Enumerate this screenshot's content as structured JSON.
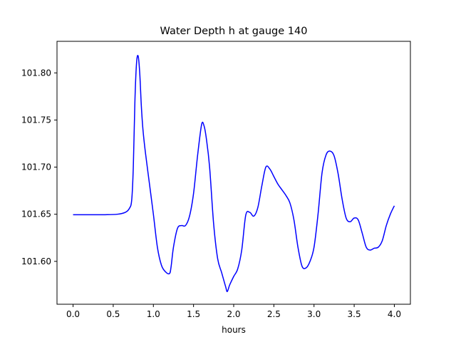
{
  "chart_data": {
    "type": "line",
    "title": "Water Depth h at gauge 140",
    "xlabel": "hours",
    "ylabel": "",
    "xlim": [
      -0.2,
      4.2
    ],
    "ylim": [
      101.5545,
      101.8335
    ],
    "x_ticks": [
      0.0,
      0.5,
      1.0,
      1.5,
      2.0,
      2.5,
      3.0,
      3.5,
      4.0
    ],
    "x_tick_labels": [
      "0.0",
      "0.5",
      "1.0",
      "1.5",
      "2.0",
      "2.5",
      "3.0",
      "3.5",
      "4.0"
    ],
    "y_ticks": [
      101.6,
      101.65,
      101.7,
      101.75,
      101.8
    ],
    "y_tick_labels": [
      "101.60",
      "101.65",
      "101.70",
      "101.75",
      "101.80"
    ],
    "grid": false,
    "colors": {
      "line": "#0000ff"
    },
    "series": [
      {
        "x": [
          0.0,
          0.2,
          0.4,
          0.55,
          0.65,
          0.7,
          0.73,
          0.75,
          0.77,
          0.79,
          0.81,
          0.83,
          0.85,
          0.87,
          0.9,
          0.95,
          1.0,
          1.05,
          1.1,
          1.15,
          1.2,
          1.22,
          1.25,
          1.3,
          1.35,
          1.4,
          1.45,
          1.5,
          1.55,
          1.6,
          1.63,
          1.66,
          1.7,
          1.75,
          1.8,
          1.85,
          1.9,
          1.92,
          1.95,
          2.0,
          2.05,
          2.1,
          2.15,
          2.2,
          2.25,
          2.3,
          2.35,
          2.4,
          2.45,
          2.5,
          2.55,
          2.6,
          2.65,
          2.7,
          2.75,
          2.8,
          2.85,
          2.9,
          2.95,
          3.0,
          3.05,
          3.1,
          3.15,
          3.2,
          3.25,
          3.3,
          3.35,
          3.4,
          3.45,
          3.5,
          3.55,
          3.6,
          3.65,
          3.7,
          3.75,
          3.8,
          3.85,
          3.9,
          3.95,
          4.0
        ],
        "y": [
          101.6495,
          101.6495,
          101.6495,
          101.65,
          101.652,
          101.656,
          101.665,
          101.7,
          101.77,
          101.81,
          101.818,
          101.8,
          101.765,
          101.74,
          101.716,
          101.683,
          101.65,
          101.615,
          101.596,
          101.589,
          101.587,
          101.594,
          101.615,
          101.635,
          101.638,
          101.638,
          101.648,
          101.672,
          101.712,
          101.745,
          101.744,
          101.73,
          101.7,
          101.64,
          101.603,
          101.588,
          101.573,
          101.568,
          101.575,
          101.584,
          101.592,
          101.612,
          101.649,
          101.652,
          101.648,
          101.657,
          101.68,
          101.7,
          101.698,
          101.69,
          101.682,
          101.676,
          101.67,
          101.662,
          101.644,
          101.615,
          101.595,
          101.593,
          101.6,
          101.615,
          101.65,
          101.694,
          101.713,
          101.717,
          101.712,
          101.693,
          101.666,
          101.646,
          101.642,
          101.646,
          101.644,
          101.63,
          101.615,
          101.612,
          101.614,
          101.615,
          101.622,
          101.638,
          101.65,
          101.659
        ]
      }
    ]
  }
}
